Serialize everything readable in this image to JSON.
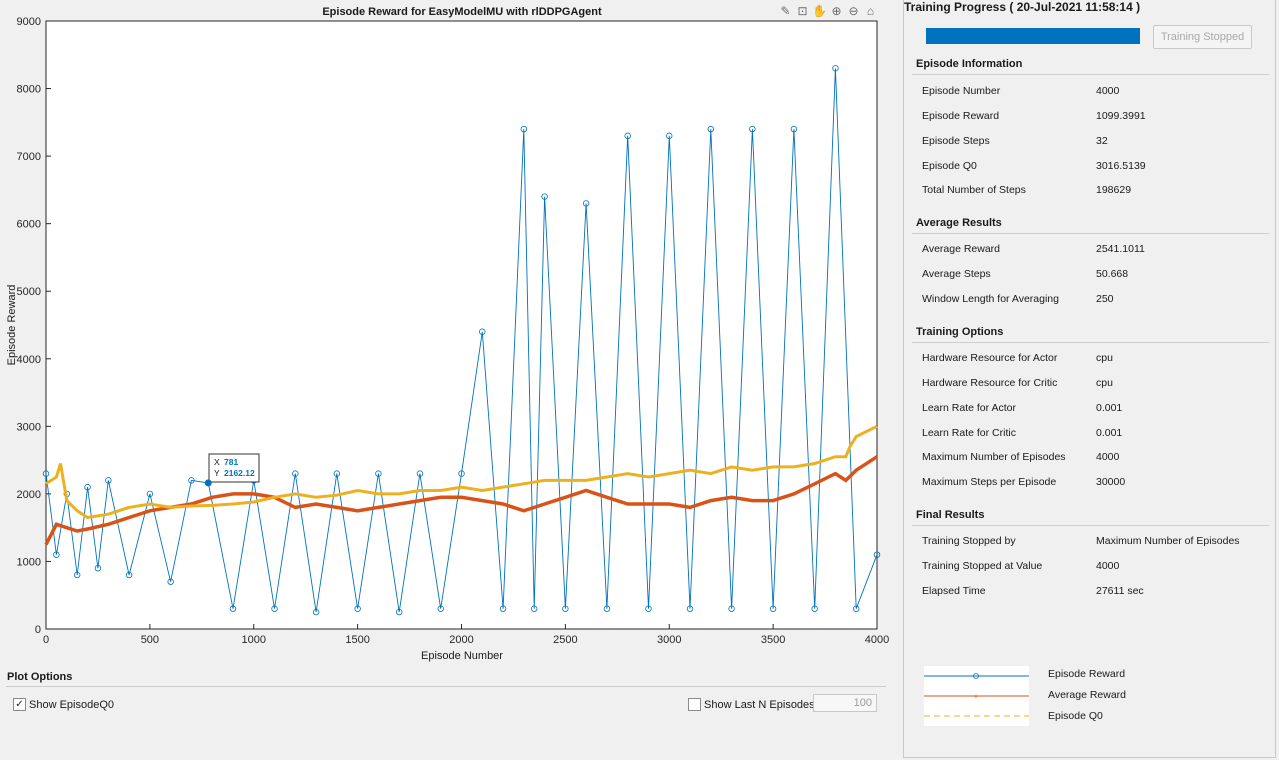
{
  "chart_data": {
    "type": "line",
    "title": "Episode Reward for EasyModelMU with rlDDPGAgent",
    "xlabel": "Episode Number",
    "ylabel": "Episode Reward",
    "xlim": [
      0,
      4000
    ],
    "ylim": [
      0,
      9000
    ],
    "xticks": [
      0,
      500,
      1000,
      1500,
      2000,
      2500,
      3000,
      3500,
      4000
    ],
    "yticks": [
      0,
      1000,
      2000,
      3000,
      4000,
      5000,
      6000,
      7000,
      8000,
      9000
    ],
    "grid": false,
    "series": [
      {
        "name": "Episode Reward",
        "color": "#0072bd",
        "style": "line-with-circle-markers",
        "x": [
          0,
          50,
          100,
          150,
          200,
          250,
          300,
          400,
          500,
          600,
          700,
          781,
          900,
          1000,
          1100,
          1200,
          1300,
          1400,
          1500,
          1600,
          1700,
          1800,
          1900,
          2000,
          2100,
          2200,
          2300,
          2350,
          2400,
          2500,
          2600,
          2700,
          2800,
          2900,
          3000,
          3100,
          3200,
          3300,
          3400,
          3500,
          3600,
          3700,
          3800,
          3900,
          4000
        ],
        "values": [
          2300,
          1100,
          2000,
          800,
          2100,
          900,
          2200,
          800,
          2000,
          700,
          2200,
          2162,
          300,
          2200,
          300,
          2300,
          250,
          2300,
          300,
          2300,
          250,
          2300,
          300,
          2300,
          4400,
          300,
          7400,
          300,
          6400,
          300,
          6300,
          300,
          7300,
          300,
          7300,
          300,
          7400,
          300,
          7400,
          300,
          7400,
          300,
          8300,
          300,
          1100
        ]
      },
      {
        "name": "Average Reward",
        "color": "#d95319",
        "style": "thick-line",
        "x": [
          0,
          50,
          100,
          150,
          200,
          300,
          400,
          500,
          600,
          700,
          800,
          900,
          1000,
          1100,
          1200,
          1300,
          1400,
          1500,
          1600,
          1700,
          1800,
          1900,
          2000,
          2100,
          2200,
          2300,
          2400,
          2500,
          2600,
          2700,
          2800,
          2900,
          3000,
          3100,
          3200,
          3300,
          3400,
          3500,
          3600,
          3700,
          3800,
          3850,
          3900,
          4000
        ],
        "values": [
          1250,
          1550,
          1500,
          1450,
          1480,
          1550,
          1650,
          1750,
          1800,
          1850,
          1950,
          2000,
          2000,
          1950,
          1800,
          1850,
          1800,
          1750,
          1800,
          1850,
          1900,
          1950,
          1950,
          1900,
          1850,
          1750,
          1850,
          1950,
          2050,
          1950,
          1850,
          1850,
          1850,
          1800,
          1900,
          1950,
          1900,
          1900,
          2000,
          2150,
          2300,
          2200,
          2350,
          2550
        ]
      },
      {
        "name": "Episode Q0",
        "color": "#edb120",
        "style": "thick-dashed",
        "x": [
          0,
          50,
          70,
          100,
          150,
          200,
          300,
          400,
          500,
          600,
          700,
          800,
          900,
          1000,
          1100,
          1200,
          1300,
          1400,
          1500,
          1600,
          1700,
          1800,
          1900,
          2000,
          2100,
          2200,
          2300,
          2400,
          2500,
          2600,
          2700,
          2800,
          2900,
          3000,
          3100,
          3200,
          3300,
          3400,
          3500,
          3600,
          3700,
          3800,
          3850,
          3870,
          3900,
          4000
        ],
        "values": [
          2150,
          2250,
          2450,
          1900,
          1750,
          1650,
          1700,
          1800,
          1850,
          1800,
          1820,
          1830,
          1850,
          1880,
          1950,
          2000,
          1950,
          1980,
          2050,
          2000,
          2000,
          2050,
          2050,
          2100,
          2050,
          2100,
          2150,
          2200,
          2200,
          2200,
          2250,
          2300,
          2250,
          2300,
          2350,
          2300,
          2400,
          2350,
          2400,
          2400,
          2450,
          2550,
          2550,
          2700,
          2850,
          3000
        ]
      }
    ],
    "datatip": {
      "x_label": "X",
      "x_value": "781",
      "y_label": "Y",
      "y_value": "2162.12",
      "x": 781,
      "y": 2162.12
    }
  },
  "toolbar": {
    "icons": [
      "brush-icon",
      "data-tip-icon",
      "pan-icon",
      "zoom-in-icon",
      "zoom-out-icon",
      "home-icon"
    ]
  },
  "plot_options": {
    "title": "Plot Options",
    "show_q0_label": "Show EpisodeQ0",
    "show_q0_checked": true,
    "show_last_n_label": "Show Last N Episodes",
    "show_last_n_checked": false,
    "last_n_value": "100"
  },
  "panel": {
    "title": "Training Progress ( 20-Jul-2021 11:58:14 )",
    "progress": 1.0,
    "stop_button": "Training Stopped",
    "sections": [
      {
        "title": "Episode Information",
        "rows": [
          {
            "label": "Episode Number",
            "value": "4000"
          },
          {
            "label": "Episode Reward",
            "value": "1099.3991"
          },
          {
            "label": "Episode Steps",
            "value": "32"
          },
          {
            "label": "Episode Q0",
            "value": "3016.5139"
          },
          {
            "label": "Total Number of Steps",
            "value": "198629"
          }
        ]
      },
      {
        "title": "Average Results",
        "rows": [
          {
            "label": "Average Reward",
            "value": "2541.1011"
          },
          {
            "label": "Average Steps",
            "value": "50.668"
          },
          {
            "label": "Window Length for Averaging",
            "value": "250"
          }
        ]
      },
      {
        "title": "Training Options",
        "rows": [
          {
            "label": "Hardware Resource for Actor",
            "value": "cpu"
          },
          {
            "label": "Hardware Resource for Critic",
            "value": "cpu"
          },
          {
            "label": "Learn Rate for Actor",
            "value": "0.001"
          },
          {
            "label": "Learn Rate for Critic",
            "value": "0.001"
          },
          {
            "label": "Maximum Number of Episodes",
            "value": "4000"
          },
          {
            "label": "Maximum Steps per Episode",
            "value": "30000"
          }
        ]
      },
      {
        "title": "Final Results",
        "rows": [
          {
            "label": "Training Stopped by",
            "value": "Maximum Number of Episodes"
          },
          {
            "label": "Training Stopped at Value",
            "value": "4000"
          },
          {
            "label": "Elapsed Time",
            "value": "27611 sec"
          }
        ]
      }
    ],
    "legend": [
      {
        "label": "Episode Reward",
        "color": "#0072bd"
      },
      {
        "label": "Average Reward",
        "color": "#d95319"
      },
      {
        "label": "Episode Q0",
        "color": "#edb120"
      }
    ]
  }
}
